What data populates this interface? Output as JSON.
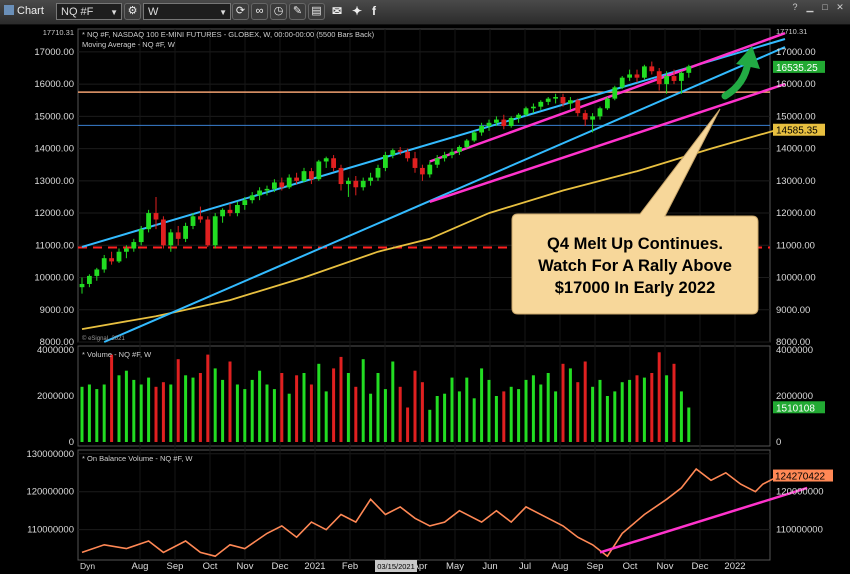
{
  "toolbar": {
    "app_label": "Chart",
    "symbol": "NQ #F",
    "interval": "W"
  },
  "price_panel": {
    "header1": "* NQ #F, NASDAQ 100 E-MINI FUTURES - GLOBEX, W, 00:00-00:00 (5500 Bars Back)",
    "header2": "Moving Average - NQ #F, W",
    "watermark": "© eSignal, 2021",
    "y_ticks": [
      "17000.00",
      "16000.00",
      "15000.00",
      "14000.00",
      "13000.00",
      "12000.00",
      "11000.00",
      "10000.00",
      "9000.00",
      "8000.00"
    ],
    "right_ticks": [
      "17000.00",
      "16000.00",
      "15000.00",
      "14000.00",
      "13000.00",
      "12000.00",
      "11000.00",
      "10000.00",
      "9000.00",
      "8000.00"
    ],
    "left_top_label": "17710.31",
    "right_top_label": "17710.31",
    "last_price": "16535.25",
    "ma_value": "14585.35",
    "annotation": [
      "Q4 Melt Up Continues.",
      "Watch For A Rally Above",
      "$17000 In Early 2022"
    ]
  },
  "volume_panel": {
    "header": "* Volume - NQ #F, W",
    "y_ticks": [
      "4000000",
      "2000000",
      "0"
    ],
    "right_ticks": [
      "4000000",
      "2000000",
      "0"
    ],
    "last_value": "1510108"
  },
  "obv_panel": {
    "header": "* On Balance Volume - NQ #F, W",
    "y_ticks": [
      "130000000",
      "120000000",
      "110000000"
    ],
    "right_ticks": [
      "120000000",
      "110000000"
    ],
    "last_value": "124270422"
  },
  "x_axis": {
    "labels": [
      "Aug",
      "Sep",
      "Oct",
      "Nov",
      "Dec",
      "2021",
      "Feb",
      "Mar",
      "Apr",
      "May",
      "Jun",
      "Jul",
      "Aug",
      "Sep",
      "Oct",
      "Nov",
      "Dec",
      "2022"
    ],
    "cursor_date": "03/15/2021",
    "dyn_label": "Dyn"
  },
  "colors": {
    "up": "#22dd22",
    "down": "#e02020",
    "channel": "#ff33cc",
    "trend": "#33bbff",
    "ma": "#e8c040",
    "resistance": "#f0a070",
    "support_dash": "#ff2020",
    "obv": "#ff8855",
    "arrow": "#22aa44",
    "callout": "#f7d79a"
  },
  "chart_data": {
    "type": "candlestick",
    "panels": [
      "price",
      "volume",
      "on_balance_volume"
    ],
    "x_labels": [
      "Aug",
      "Sep",
      "Oct",
      "Nov",
      "Dec",
      "2021",
      "Feb",
      "Mar",
      "Apr",
      "May",
      "Jun",
      "Jul",
      "Aug",
      "Sep",
      "Oct",
      "Nov",
      "Dec",
      "2022"
    ],
    "price_ylim": [
      8000,
      17710
    ],
    "volume_ylim": [
      0,
      4000000
    ],
    "obv_ylim": [
      102000000,
      131000000
    ],
    "candles": [
      [
        9700,
        10000,
        9500,
        9800
      ],
      [
        9800,
        10100,
        9700,
        10050
      ],
      [
        10050,
        10300,
        9900,
        10250
      ],
      [
        10250,
        10700,
        10150,
        10600
      ],
      [
        10600,
        10800,
        10400,
        10500
      ],
      [
        10500,
        10900,
        10450,
        10800
      ],
      [
        10800,
        11000,
        10600,
        10900
      ],
      [
        10900,
        11200,
        10800,
        11100
      ],
      [
        11100,
        11600,
        11000,
        11500
      ],
      [
        11500,
        12100,
        11400,
        12000
      ],
      [
        12000,
        12500,
        11500,
        11800
      ],
      [
        11800,
        11900,
        10900,
        11000
      ],
      [
        11000,
        11500,
        10800,
        11400
      ],
      [
        11400,
        11600,
        11000,
        11200
      ],
      [
        11200,
        11700,
        11100,
        11600
      ],
      [
        11600,
        12000,
        11500,
        11900
      ],
      [
        11900,
        12200,
        11700,
        11800
      ],
      [
        11800,
        11900,
        10950,
        11000
      ],
      [
        11000,
        12000,
        10900,
        11900
      ],
      [
        11900,
        12150,
        11700,
        12100
      ],
      [
        12100,
        12300,
        11900,
        12000
      ],
      [
        12000,
        12350,
        11900,
        12250
      ],
      [
        12250,
        12500,
        12100,
        12400
      ],
      [
        12400,
        12650,
        12300,
        12550
      ],
      [
        12550,
        12800,
        12400,
        12700
      ],
      [
        12700,
        12850,
        12550,
        12750
      ],
      [
        12750,
        13050,
        12650,
        12950
      ],
      [
        12950,
        13100,
        12700,
        12800
      ],
      [
        12800,
        13200,
        12750,
        13100
      ],
      [
        13100,
        13250,
        12900,
        13000
      ],
      [
        13000,
        13400,
        12950,
        13300
      ],
      [
        13300,
        13400,
        12900,
        13050
      ],
      [
        13050,
        13650,
        13000,
        13600
      ],
      [
        13600,
        13750,
        13400,
        13700
      ],
      [
        13700,
        13800,
        13300,
        13400
      ],
      [
        13400,
        13500,
        12700,
        12900
      ],
      [
        12900,
        13100,
        12500,
        13000
      ],
      [
        13000,
        13150,
        12550,
        12800
      ],
      [
        12800,
        13100,
        12700,
        13000
      ],
      [
        13000,
        13250,
        12850,
        13100
      ],
      [
        13100,
        13500,
        13000,
        13400
      ],
      [
        13400,
        13900,
        13300,
        13800
      ],
      [
        13800,
        14000,
        13700,
        13950
      ],
      [
        13950,
        14050,
        13800,
        13900
      ],
      [
        13900,
        14000,
        13600,
        13700
      ],
      [
        13700,
        13900,
        13250,
        13400
      ],
      [
        13400,
        13500,
        13000,
        13200
      ],
      [
        13200,
        13600,
        13100,
        13500
      ],
      [
        13500,
        13800,
        13400,
        13700
      ],
      [
        13700,
        13900,
        13600,
        13800
      ],
      [
        13800,
        14000,
        13700,
        13900
      ],
      [
        13900,
        14100,
        13800,
        14050
      ],
      [
        14050,
        14300,
        14000,
        14250
      ],
      [
        14250,
        14550,
        14200,
        14500
      ],
      [
        14500,
        14800,
        14400,
        14700
      ],
      [
        14700,
        14900,
        14550,
        14800
      ],
      [
        14800,
        15000,
        14700,
        14900
      ],
      [
        14900,
        15050,
        14600,
        14700
      ],
      [
        14700,
        15000,
        14650,
        14950
      ],
      [
        14950,
        15100,
        14800,
        15050
      ],
      [
        15050,
        15300,
        15000,
        15250
      ],
      [
        15250,
        15400,
        15100,
        15300
      ],
      [
        15300,
        15500,
        15200,
        15450
      ],
      [
        15450,
        15600,
        15350,
        15550
      ],
      [
        15550,
        15700,
        15400,
        15600
      ],
      [
        15600,
        15700,
        15300,
        15400
      ],
      [
        15400,
        15600,
        15200,
        15500
      ],
      [
        15500,
        15550,
        15000,
        15100
      ],
      [
        15100,
        15200,
        14700,
        14900
      ],
      [
        14900,
        15100,
        14500,
        15000
      ],
      [
        15000,
        15300,
        14900,
        15250
      ],
      [
        15250,
        15600,
        15200,
        15550
      ],
      [
        15550,
        15950,
        15500,
        15900
      ],
      [
        15900,
        16250,
        15850,
        16200
      ],
      [
        16200,
        16450,
        16100,
        16300
      ],
      [
        16300,
        16450,
        16050,
        16200
      ],
      [
        16200,
        16600,
        16150,
        16550
      ],
      [
        16550,
        16700,
        16300,
        16400
      ],
      [
        16400,
        16500,
        15800,
        16000
      ],
      [
        16000,
        16400,
        15700,
        16250
      ],
      [
        16250,
        16450,
        16000,
        16100
      ],
      [
        16100,
        16400,
        15700,
        16350
      ],
      [
        16350,
        16600,
        16200,
        16550
      ]
    ],
    "moving_average": [
      [
        0,
        8400
      ],
      [
        10,
        8800
      ],
      [
        20,
        9300
      ],
      [
        30,
        10000
      ],
      [
        40,
        10800
      ],
      [
        47,
        11200
      ],
      [
        55,
        12000
      ],
      [
        65,
        12700
      ],
      [
        75,
        13300
      ],
      [
        85,
        14000
      ],
      [
        94,
        14585
      ]
    ],
    "channel_upper": [
      [
        47,
        13600
      ],
      [
        95,
        17580
      ]
    ],
    "channel_lower": [
      [
        47,
        12350
      ],
      [
        95,
        16000
      ]
    ],
    "trend_line_1": [
      [
        0,
        10950
      ],
      [
        95,
        17400
      ]
    ],
    "trend_line_2": [
      [
        3,
        8000
      ],
      [
        95,
        17150
      ]
    ],
    "resistance": 15750,
    "support": 10930,
    "ma_label_level": 14720,
    "volume": [
      2.4,
      2.5,
      2.3,
      2.5,
      3.8,
      2.9,
      3.1,
      2.7,
      2.5,
      2.8,
      2.4,
      2.6,
      2.5,
      3.6,
      2.9,
      2.8,
      3.0,
      3.8,
      3.2,
      2.7,
      3.5,
      2.5,
      2.3,
      2.7,
      3.1,
      2.5,
      2.3,
      3.0,
      2.1,
      2.9,
      3.0,
      2.5,
      3.4,
      2.2,
      3.2,
      3.7,
      3.0,
      2.4,
      3.6,
      2.1,
      3.0,
      2.3,
      3.5,
      2.4,
      1.5,
      3.1,
      2.6,
      1.4,
      2.0,
      2.1,
      2.8,
      2.2,
      2.8,
      1.9,
      3.2,
      2.7,
      2.0,
      2.2,
      2.4,
      2.3,
      2.7,
      2.9,
      2.5,
      3.0,
      2.2,
      3.4,
      3.2,
      2.6,
      3.5,
      2.4,
      2.7,
      2.0,
      2.2,
      2.6,
      2.7,
      2.9,
      2.8,
      3.0,
      3.9,
      2.9,
      3.4,
      2.2,
      1.5
    ],
    "obv": [
      [
        0,
        104
      ],
      [
        3,
        106
      ],
      [
        6,
        105
      ],
      [
        9,
        107
      ],
      [
        11,
        104
      ],
      [
        14,
        107
      ],
      [
        16,
        104
      ],
      [
        18,
        103
      ],
      [
        20,
        106
      ],
      [
        22,
        105
      ],
      [
        25,
        109
      ],
      [
        27,
        111
      ],
      [
        29,
        108
      ],
      [
        31,
        112
      ],
      [
        33,
        110
      ],
      [
        35,
        114
      ],
      [
        37,
        112
      ],
      [
        39,
        118
      ],
      [
        41,
        114
      ],
      [
        43,
        116
      ],
      [
        45,
        113
      ],
      [
        47,
        111
      ],
      [
        49,
        112
      ],
      [
        51,
        115
      ],
      [
        54,
        112
      ],
      [
        56,
        115
      ],
      [
        58,
        112
      ],
      [
        60,
        116
      ],
      [
        63,
        113
      ],
      [
        65,
        111
      ],
      [
        67,
        108
      ],
      [
        69,
        106
      ],
      [
        71,
        103
      ],
      [
        73,
        109
      ],
      [
        76,
        114
      ],
      [
        79,
        118
      ],
      [
        81,
        121
      ],
      [
        83,
        126
      ],
      [
        85,
        123
      ],
      [
        87,
        125
      ],
      [
        89,
        122
      ],
      [
        91,
        120
      ],
      [
        92,
        122
      ],
      [
        94,
        124
      ]
    ],
    "obv_trend": [
      [
        70,
        104
      ],
      [
        98,
        121
      ]
    ]
  }
}
